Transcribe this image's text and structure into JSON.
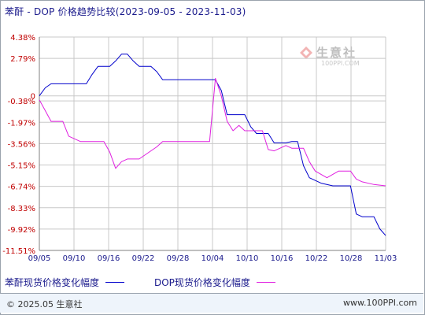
{
  "title": "苯酐 - DOP 价格趋势比较(2023-09-05 - 2023-11-03)",
  "watermark": {
    "name": "生意社",
    "url": "100PPI.COM"
  },
  "footer": {
    "copyright": "© 2025.05 生意社",
    "site": "www.100PPI.com"
  },
  "chart_data": {
    "type": "line",
    "title": "苯酐 - DOP 价格趋势比较(2023-09-05 - 2023-11-03)",
    "xlabel": "",
    "ylabel": "",
    "x_start": "2023-09-05",
    "x_end": "2023-11-03",
    "x_tick_labels": [
      "09/05",
      "09/10",
      "09/16",
      "09/22",
      "09/28",
      "10/04",
      "10/10",
      "10/16",
      "10/22",
      "10/28",
      "11/03"
    ],
    "y_tick_values": [
      4.38,
      2.79,
      0,
      -0.38,
      -1.97,
      -3.56,
      -5.15,
      -6.74,
      -8.33,
      -9.92,
      -11.51
    ],
    "y_tick_labels": [
      "4.38%",
      "2.79%",
      "0",
      "-0.38%",
      "-1.97%",
      "-3.56%",
      "-5.15%",
      "-6.74%",
      "-8.33%",
      "-9.92%",
      "-11.51%"
    ],
    "ylim": [
      -11.51,
      4.38
    ],
    "grid": true,
    "legend_position": "bottom",
    "series": [
      {
        "name": "苯酐现货价格变化幅度",
        "color": "#0000cc",
        "points": [
          [
            "2023-09-05",
            0
          ],
          [
            "2023-09-06",
            0.6
          ],
          [
            "2023-09-07",
            0.9
          ],
          [
            "2023-09-09",
            0.9
          ],
          [
            "2023-09-13",
            0.9
          ],
          [
            "2023-09-14",
            1.6
          ],
          [
            "2023-09-15",
            2.2
          ],
          [
            "2023-09-17",
            2.2
          ],
          [
            "2023-09-18",
            2.6
          ],
          [
            "2023-09-19",
            3.1
          ],
          [
            "2023-09-20",
            3.1
          ],
          [
            "2023-09-21",
            2.6
          ],
          [
            "2023-09-22",
            2.2
          ],
          [
            "2023-09-24",
            2.2
          ],
          [
            "2023-09-25",
            1.8
          ],
          [
            "2023-09-26",
            1.2
          ],
          [
            "2023-10-01",
            1.2
          ],
          [
            "2023-10-05",
            1.2
          ],
          [
            "2023-10-06",
            0.4
          ],
          [
            "2023-10-07",
            -1.4
          ],
          [
            "2023-10-10",
            -1.4
          ],
          [
            "2023-10-11",
            -2.3
          ],
          [
            "2023-10-12",
            -2.8
          ],
          [
            "2023-10-14",
            -2.8
          ],
          [
            "2023-10-15",
            -3.5
          ],
          [
            "2023-10-17",
            -3.5
          ],
          [
            "2023-10-18",
            -3.4
          ],
          [
            "2023-10-19",
            -3.4
          ],
          [
            "2023-10-20",
            -5.2
          ],
          [
            "2023-10-21",
            -6.1
          ],
          [
            "2023-10-23",
            -6.5
          ],
          [
            "2023-10-25",
            -6.7
          ],
          [
            "2023-10-28",
            -6.7
          ],
          [
            "2023-10-29",
            -8.8
          ],
          [
            "2023-10-30",
            -9.0
          ],
          [
            "2023-11-01",
            -9.0
          ],
          [
            "2023-11-02",
            -9.9
          ],
          [
            "2023-11-03",
            -10.4
          ]
        ]
      },
      {
        "name": "DOP现货价格变化幅度",
        "color": "#e020e0",
        "points": [
          [
            "2023-09-05",
            -0.3
          ],
          [
            "2023-09-06",
            -1.1
          ],
          [
            "2023-09-07",
            -1.9
          ],
          [
            "2023-09-09",
            -1.9
          ],
          [
            "2023-09-10",
            -3.0
          ],
          [
            "2023-09-11",
            -3.2
          ],
          [
            "2023-09-12",
            -3.4
          ],
          [
            "2023-09-16",
            -3.4
          ],
          [
            "2023-09-17",
            -4.2
          ],
          [
            "2023-09-18",
            -5.4
          ],
          [
            "2023-09-19",
            -4.9
          ],
          [
            "2023-09-20",
            -4.7
          ],
          [
            "2023-09-22",
            -4.7
          ],
          [
            "2023-09-24",
            -4.1
          ],
          [
            "2023-09-25",
            -3.8
          ],
          [
            "2023-09-26",
            -3.4
          ],
          [
            "2023-10-04",
            -3.4
          ],
          [
            "2023-10-05",
            1.3
          ],
          [
            "2023-10-06",
            0
          ],
          [
            "2023-10-07",
            -1.9
          ],
          [
            "2023-10-08",
            -2.6
          ],
          [
            "2023-10-09",
            -2.2
          ],
          [
            "2023-10-10",
            -2.6
          ],
          [
            "2023-10-13",
            -2.6
          ],
          [
            "2023-10-14",
            -4.0
          ],
          [
            "2023-10-15",
            -4.1
          ],
          [
            "2023-10-16",
            -3.9
          ],
          [
            "2023-10-17",
            -3.7
          ],
          [
            "2023-10-18",
            -3.9
          ],
          [
            "2023-10-20",
            -3.9
          ],
          [
            "2023-10-21",
            -4.9
          ],
          [
            "2023-10-22",
            -5.6
          ],
          [
            "2023-10-24",
            -6.1
          ],
          [
            "2023-10-26",
            -5.6
          ],
          [
            "2023-10-28",
            -5.6
          ],
          [
            "2023-10-29",
            -6.2
          ],
          [
            "2023-10-30",
            -6.4
          ],
          [
            "2023-11-01",
            -6.6
          ],
          [
            "2023-11-03",
            -6.7
          ]
        ]
      }
    ]
  }
}
